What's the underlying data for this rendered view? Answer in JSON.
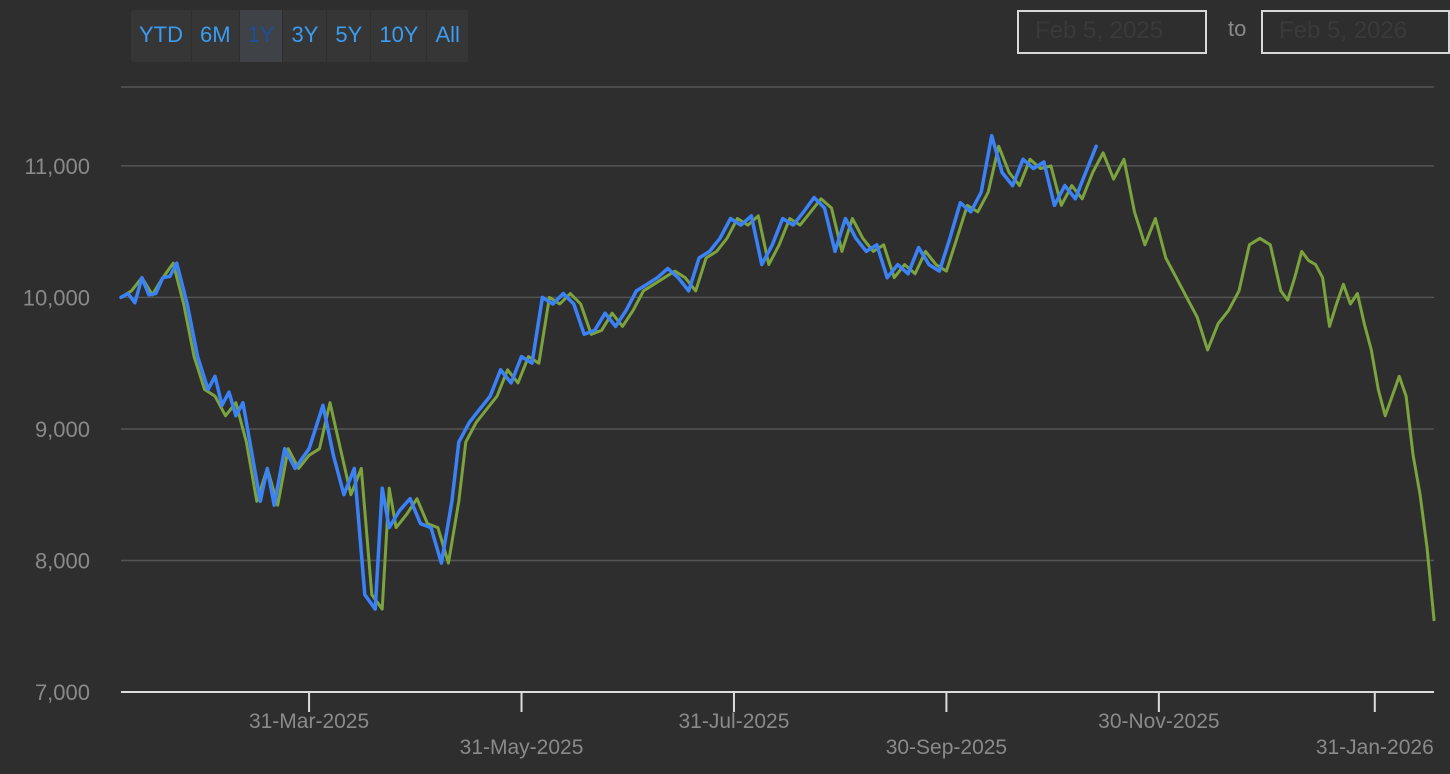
{
  "range_selector": {
    "buttons": [
      "YTD",
      "6M",
      "1Y",
      "3Y",
      "5Y",
      "10Y",
      "All"
    ],
    "active": "1Y"
  },
  "date_range": {
    "from": "Feb 5, 2025",
    "separator": "to",
    "to": "Feb 5, 2026"
  },
  "colors": {
    "series_a": "#3b82f6",
    "series_b": "#7ba33e",
    "background": "#2e2e2e",
    "grid": "#555555",
    "text": "#8a8a8a",
    "button_text": "#3b9cf1"
  },
  "chart_data": {
    "type": "line",
    "title": "",
    "xlabel": "",
    "ylabel": "",
    "x_range": [
      "2025-02-05",
      "2026-02-05"
    ],
    "ylim": [
      7000,
      11600
    ],
    "y_ticks": [
      7000,
      8000,
      9000,
      10000,
      11000
    ],
    "y_tick_labels": [
      "7,000",
      "8,000",
      "9,000",
      "10,000",
      "11,000"
    ],
    "x_ticks": [
      {
        "date": "2025-03-31",
        "label": "31-Mar-2025"
      },
      {
        "date": "2025-05-31",
        "label": "31-May-2025"
      },
      {
        "date": "2025-07-31",
        "label": "31-Jul-2025"
      },
      {
        "date": "2025-09-30",
        "label": "30-Sep-2025"
      },
      {
        "date": "2025-11-30",
        "label": "30-Nov-2025"
      },
      {
        "date": "2026-01-31",
        "label": "31-Jan-2026"
      }
    ],
    "grid": true,
    "legend": "none",
    "series": [
      {
        "color": "#7ba33e",
        "points": [
          [
            "2025-02-05",
            10000
          ],
          [
            "2025-02-08",
            10050
          ],
          [
            "2025-02-11",
            10150
          ],
          [
            "2025-02-14",
            10020
          ],
          [
            "2025-02-17",
            10150
          ],
          [
            "2025-02-20",
            10260
          ],
          [
            "2025-02-23",
            9950
          ],
          [
            "2025-02-26",
            9550
          ],
          [
            "2025-03-01",
            9300
          ],
          [
            "2025-03-04",
            9250
          ],
          [
            "2025-03-07",
            9100
          ],
          [
            "2025-03-10",
            9200
          ],
          [
            "2025-03-13",
            8900
          ],
          [
            "2025-03-16",
            8450
          ],
          [
            "2025-03-19",
            8700
          ],
          [
            "2025-03-22",
            8420
          ],
          [
            "2025-03-25",
            8850
          ],
          [
            "2025-03-28",
            8700
          ],
          [
            "2025-03-31",
            8800
          ],
          [
            "2025-04-03",
            8850
          ],
          [
            "2025-04-06",
            9200
          ],
          [
            "2025-04-09",
            8850
          ],
          [
            "2025-04-12",
            8500
          ],
          [
            "2025-04-15",
            8700
          ],
          [
            "2025-04-18",
            7740
          ],
          [
            "2025-04-21",
            7630
          ],
          [
            "2025-04-23",
            8550
          ],
          [
            "2025-04-25",
            8250
          ],
          [
            "2025-04-28",
            8350
          ],
          [
            "2025-05-01",
            8470
          ],
          [
            "2025-05-04",
            8280
          ],
          [
            "2025-05-07",
            8250
          ],
          [
            "2025-05-10",
            7980
          ],
          [
            "2025-05-13",
            8450
          ],
          [
            "2025-05-15",
            8900
          ],
          [
            "2025-05-18",
            9050
          ],
          [
            "2025-05-21",
            9150
          ],
          [
            "2025-05-24",
            9250
          ],
          [
            "2025-05-27",
            9450
          ],
          [
            "2025-05-30",
            9350
          ],
          [
            "2025-06-02",
            9550
          ],
          [
            "2025-06-05",
            9500
          ],
          [
            "2025-06-08",
            10000
          ],
          [
            "2025-06-11",
            9950
          ],
          [
            "2025-06-14",
            10030
          ],
          [
            "2025-06-17",
            9950
          ],
          [
            "2025-06-20",
            9720
          ],
          [
            "2025-06-23",
            9750
          ],
          [
            "2025-06-26",
            9880
          ],
          [
            "2025-06-29",
            9780
          ],
          [
            "2025-07-02",
            9900
          ],
          [
            "2025-07-05",
            10050
          ],
          [
            "2025-07-08",
            10100
          ],
          [
            "2025-07-11",
            10150
          ],
          [
            "2025-07-14",
            10200
          ],
          [
            "2025-07-17",
            10150
          ],
          [
            "2025-07-20",
            10050
          ],
          [
            "2025-07-23",
            10300
          ],
          [
            "2025-07-26",
            10350
          ],
          [
            "2025-07-29",
            10450
          ],
          [
            "2025-08-01",
            10600
          ],
          [
            "2025-08-04",
            10550
          ],
          [
            "2025-08-07",
            10620
          ],
          [
            "2025-08-10",
            10250
          ],
          [
            "2025-08-13",
            10400
          ],
          [
            "2025-08-16",
            10600
          ],
          [
            "2025-08-19",
            10550
          ],
          [
            "2025-08-22",
            10650
          ],
          [
            "2025-08-25",
            10750
          ],
          [
            "2025-08-28",
            10680
          ],
          [
            "2025-08-31",
            10350
          ],
          [
            "2025-09-03",
            10600
          ],
          [
            "2025-09-06",
            10450
          ],
          [
            "2025-09-09",
            10350
          ],
          [
            "2025-09-12",
            10400
          ],
          [
            "2025-09-15",
            10150
          ],
          [
            "2025-09-18",
            10250
          ],
          [
            "2025-09-21",
            10180
          ],
          [
            "2025-09-24",
            10350
          ],
          [
            "2025-09-27",
            10250
          ],
          [
            "2025-09-30",
            10200
          ],
          [
            "2025-10-03",
            10450
          ],
          [
            "2025-10-06",
            10700
          ],
          [
            "2025-10-09",
            10650
          ],
          [
            "2025-10-12",
            10800
          ],
          [
            "2025-10-15",
            11150
          ],
          [
            "2025-10-18",
            10950
          ],
          [
            "2025-10-21",
            10850
          ],
          [
            "2025-10-24",
            11050
          ],
          [
            "2025-10-27",
            10980
          ],
          [
            "2025-10-30",
            11000
          ],
          [
            "2025-11-02",
            10700
          ],
          [
            "2025-11-05",
            10850
          ],
          [
            "2025-11-08",
            10750
          ],
          [
            "2025-11-11",
            10950
          ],
          [
            "2025-11-14",
            11100
          ],
          [
            "2025-11-17",
            10900
          ],
          [
            "2025-11-20",
            11050
          ],
          [
            "2025-11-23",
            10650
          ],
          [
            "2025-11-26",
            10400
          ],
          [
            "2025-11-29",
            10600
          ],
          [
            "2025-12-02",
            10300
          ],
          [
            "2025-12-05",
            10150
          ],
          [
            "2025-12-08",
            10000
          ],
          [
            "2025-12-11",
            9850
          ],
          [
            "2025-12-14",
            9600
          ],
          [
            "2025-12-17",
            9800
          ],
          [
            "2025-12-20",
            9900
          ],
          [
            "2025-12-23",
            10050
          ],
          [
            "2025-12-26",
            10400
          ],
          [
            "2025-12-29",
            10450
          ],
          [
            "2026-01-01",
            10400
          ],
          [
            "2026-01-04",
            10050
          ],
          [
            "2026-01-06",
            9980
          ],
          [
            "2026-01-08",
            10150
          ],
          [
            "2026-01-10",
            10350
          ],
          [
            "2026-01-12",
            10280
          ],
          [
            "2026-01-14",
            10250
          ],
          [
            "2026-01-16",
            10150
          ],
          [
            "2026-01-18",
            9780
          ],
          [
            "2026-01-20",
            9950
          ],
          [
            "2026-01-22",
            10100
          ],
          [
            "2026-01-24",
            9950
          ],
          [
            "2026-01-26",
            10030
          ],
          [
            "2026-01-28",
            9800
          ],
          [
            "2026-01-30",
            9600
          ],
          [
            "2026-02-01",
            9300
          ],
          [
            "2026-02-03",
            9100
          ],
          [
            "2026-02-05",
            9250
          ],
          [
            "2026-02-07",
            9400
          ],
          [
            "2026-02-09",
            9250
          ],
          [
            "2026-02-11",
            8800
          ],
          [
            "2026-02-13",
            8500
          ],
          [
            "2026-02-15",
            8100
          ],
          [
            "2026-02-17",
            7550
          ]
        ]
      },
      {
        "color": "#3b82f6",
        "points": [
          [
            "2025-02-05",
            10000
          ],
          [
            "2025-02-07",
            10030
          ],
          [
            "2025-02-09",
            9960
          ],
          [
            "2025-02-11",
            10150
          ],
          [
            "2025-02-13",
            10020
          ],
          [
            "2025-02-15",
            10030
          ],
          [
            "2025-02-17",
            10150
          ],
          [
            "2025-02-19",
            10160
          ],
          [
            "2025-02-21",
            10260
          ],
          [
            "2025-02-24",
            9950
          ],
          [
            "2025-02-27",
            9550
          ],
          [
            "2025-03-02",
            9300
          ],
          [
            "2025-03-04",
            9400
          ],
          [
            "2025-03-06",
            9180
          ],
          [
            "2025-03-08",
            9280
          ],
          [
            "2025-03-10",
            9100
          ],
          [
            "2025-03-12",
            9200
          ],
          [
            "2025-03-14",
            8900
          ],
          [
            "2025-03-17",
            8450
          ],
          [
            "2025-03-19",
            8700
          ],
          [
            "2025-03-21",
            8420
          ],
          [
            "2025-03-24",
            8850
          ],
          [
            "2025-03-27",
            8700
          ],
          [
            "2025-03-31",
            8850
          ],
          [
            "2025-04-04",
            9180
          ],
          [
            "2025-04-07",
            8800
          ],
          [
            "2025-04-10",
            8500
          ],
          [
            "2025-04-13",
            8700
          ],
          [
            "2025-04-16",
            7740
          ],
          [
            "2025-04-19",
            7630
          ],
          [
            "2025-04-21",
            8550
          ],
          [
            "2025-04-23",
            8250
          ],
          [
            "2025-04-26",
            8380
          ],
          [
            "2025-04-29",
            8470
          ],
          [
            "2025-05-02",
            8280
          ],
          [
            "2025-05-05",
            8250
          ],
          [
            "2025-05-08",
            7980
          ],
          [
            "2025-05-11",
            8450
          ],
          [
            "2025-05-13",
            8900
          ],
          [
            "2025-05-16",
            9050
          ],
          [
            "2025-05-19",
            9150
          ],
          [
            "2025-05-22",
            9250
          ],
          [
            "2025-05-25",
            9450
          ],
          [
            "2025-05-28",
            9350
          ],
          [
            "2025-05-31",
            9550
          ],
          [
            "2025-06-03",
            9500
          ],
          [
            "2025-06-06",
            10000
          ],
          [
            "2025-06-09",
            9950
          ],
          [
            "2025-06-12",
            10030
          ],
          [
            "2025-06-15",
            9950
          ],
          [
            "2025-06-18",
            9720
          ],
          [
            "2025-06-21",
            9750
          ],
          [
            "2025-06-24",
            9880
          ],
          [
            "2025-06-27",
            9780
          ],
          [
            "2025-06-30",
            9900
          ],
          [
            "2025-07-03",
            10050
          ],
          [
            "2025-07-06",
            10100
          ],
          [
            "2025-07-09",
            10150
          ],
          [
            "2025-07-12",
            10220
          ],
          [
            "2025-07-15",
            10150
          ],
          [
            "2025-07-18",
            10050
          ],
          [
            "2025-07-21",
            10300
          ],
          [
            "2025-07-24",
            10350
          ],
          [
            "2025-07-27",
            10450
          ],
          [
            "2025-07-30",
            10600
          ],
          [
            "2025-08-02",
            10550
          ],
          [
            "2025-08-05",
            10620
          ],
          [
            "2025-08-08",
            10250
          ],
          [
            "2025-08-11",
            10400
          ],
          [
            "2025-08-14",
            10600
          ],
          [
            "2025-08-17",
            10550
          ],
          [
            "2025-08-20",
            10650
          ],
          [
            "2025-08-23",
            10760
          ],
          [
            "2025-08-26",
            10680
          ],
          [
            "2025-08-29",
            10350
          ],
          [
            "2025-09-01",
            10600
          ],
          [
            "2025-09-04",
            10450
          ],
          [
            "2025-09-07",
            10350
          ],
          [
            "2025-09-10",
            10400
          ],
          [
            "2025-09-13",
            10150
          ],
          [
            "2025-09-16",
            10250
          ],
          [
            "2025-09-19",
            10180
          ],
          [
            "2025-09-22",
            10380
          ],
          [
            "2025-09-25",
            10250
          ],
          [
            "2025-09-28",
            10200
          ],
          [
            "2025-10-01",
            10450
          ],
          [
            "2025-10-04",
            10720
          ],
          [
            "2025-10-07",
            10650
          ],
          [
            "2025-10-10",
            10800
          ],
          [
            "2025-10-13",
            11230
          ],
          [
            "2025-10-16",
            10950
          ],
          [
            "2025-10-19",
            10850
          ],
          [
            "2025-10-22",
            11050
          ],
          [
            "2025-10-25",
            10980
          ],
          [
            "2025-10-28",
            11030
          ],
          [
            "2025-10-31",
            10700
          ],
          [
            "2025-11-03",
            10850
          ],
          [
            "2025-11-06",
            10750
          ],
          [
            "2025-11-09",
            10950
          ],
          [
            "2025-11-12",
            11150
          ]
        ]
      }
    ]
  }
}
